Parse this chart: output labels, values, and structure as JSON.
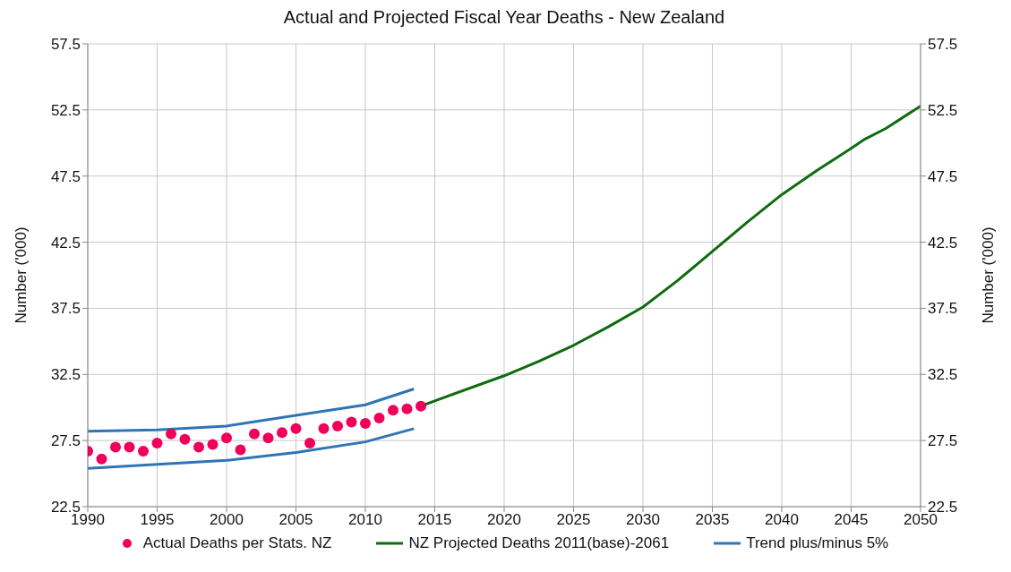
{
  "chart_data": {
    "type": "line",
    "title": "Actual and Projected Fiscal Year Deaths - New Zealand",
    "ylabel": "Number ('000)",
    "y2label": "Number ('000)",
    "xlim": [
      1990,
      2050
    ],
    "xticks": [
      1990,
      1995,
      2000,
      2005,
      2010,
      2015,
      2020,
      2025,
      2030,
      2035,
      2040,
      2045,
      2050
    ],
    "ylim": [
      22.5,
      57.5
    ],
    "yticks": [
      22.5,
      27.5,
      32.5,
      37.5,
      42.5,
      47.5,
      52.5,
      57.5
    ],
    "y2lim": [
      22.5,
      57.5
    ],
    "y2ticks": [
      22.5,
      27.5,
      32.5,
      37.5,
      42.5,
      47.5,
      52.5,
      57.5
    ],
    "grid": true,
    "legend": "bottom",
    "series": [
      {
        "name": "Actual Deaths per Stats. NZ",
        "type": "scatter",
        "marker": "circle",
        "color": "#f0005a",
        "x": [
          1990,
          1991,
          1992,
          1993,
          1994,
          1995,
          1996,
          1997,
          1998,
          1999,
          2000,
          2001,
          2002,
          2003,
          2004,
          2005,
          2006,
          2007,
          2008,
          2009,
          2010,
          2011,
          2012,
          2013,
          2014
        ],
        "values": [
          26.7,
          26.1,
          27.0,
          27.0,
          26.7,
          27.3,
          28.0,
          27.6,
          27.0,
          27.2,
          27.7,
          26.8,
          28.0,
          27.7,
          28.1,
          28.4,
          27.3,
          28.4,
          28.6,
          28.9,
          28.8,
          29.2,
          29.8,
          29.9,
          30.1
        ]
      },
      {
        "name": "NZ Projected Deaths 2011(base)-2061",
        "color": "#0f6b0f",
        "x": [
          2014,
          2015,
          2020,
          2022.5,
          2025,
          2027.5,
          2030,
          2032.5,
          2035,
          2037.5,
          2040,
          2042.5,
          2045,
          2046,
          2047.5,
          2050
        ],
        "values": [
          30.1,
          30.5,
          32.4,
          33.5,
          34.7,
          36.1,
          37.6,
          39.6,
          41.8,
          44.0,
          46.1,
          47.9,
          49.6,
          50.3,
          51.1,
          52.8
        ]
      },
      {
        "name": "Trend plus/minus 5%",
        "color": "#2e75b6",
        "x": [
          1990,
          1995,
          2000,
          2005,
          2010,
          2013.5
        ],
        "values": [
          28.2,
          28.3,
          28.6,
          29.4,
          30.2,
          31.4
        ]
      },
      {
        "color": "#2e75b6",
        "x": [
          1990,
          1995,
          2000,
          2005,
          2010,
          2013.5
        ],
        "values": [
          25.4,
          25.7,
          26.0,
          26.6,
          27.4,
          28.4
        ]
      }
    ]
  }
}
